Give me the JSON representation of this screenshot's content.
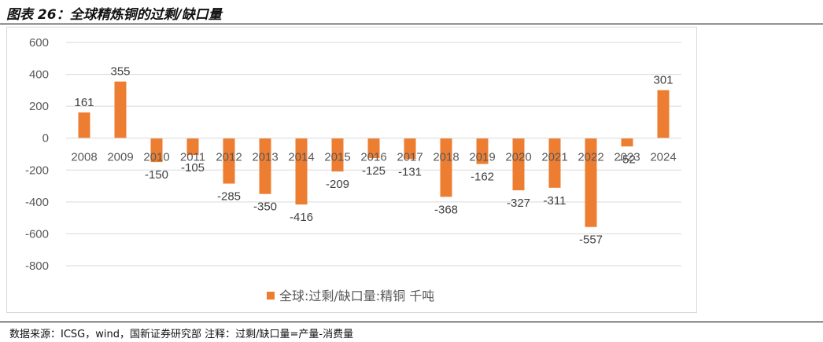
{
  "header": {
    "title": "图表 26：全球精炼铜的过剩/缺口量"
  },
  "footer": {
    "source": "数据来源：ICSG，wind，国新证券研究部    注释：过剩/缺口量=产量-消费量"
  },
  "chart_data": {
    "type": "bar",
    "categories": [
      "2008",
      "2009",
      "2010",
      "2011",
      "2012",
      "2013",
      "2014",
      "2015",
      "2016",
      "2017",
      "2018",
      "2019",
      "2020",
      "2021",
      "2022",
      "2023",
      "2024"
    ],
    "series": [
      {
        "name": "全球:过剩/缺口量:精铜 千吨",
        "values": [
          161,
          355,
          -150,
          -105,
          -285,
          -350,
          -416,
          -209,
          -125,
          -131,
          -368,
          -162,
          -327,
          -311,
          -557,
          -52,
          301
        ],
        "color": "#ED7D31"
      }
    ],
    "ylim": [
      -800,
      600
    ],
    "yticks": [
      600,
      400,
      200,
      0,
      -200,
      -400,
      -600,
      -800
    ],
    "grid": true,
    "legend_position": "bottom"
  }
}
